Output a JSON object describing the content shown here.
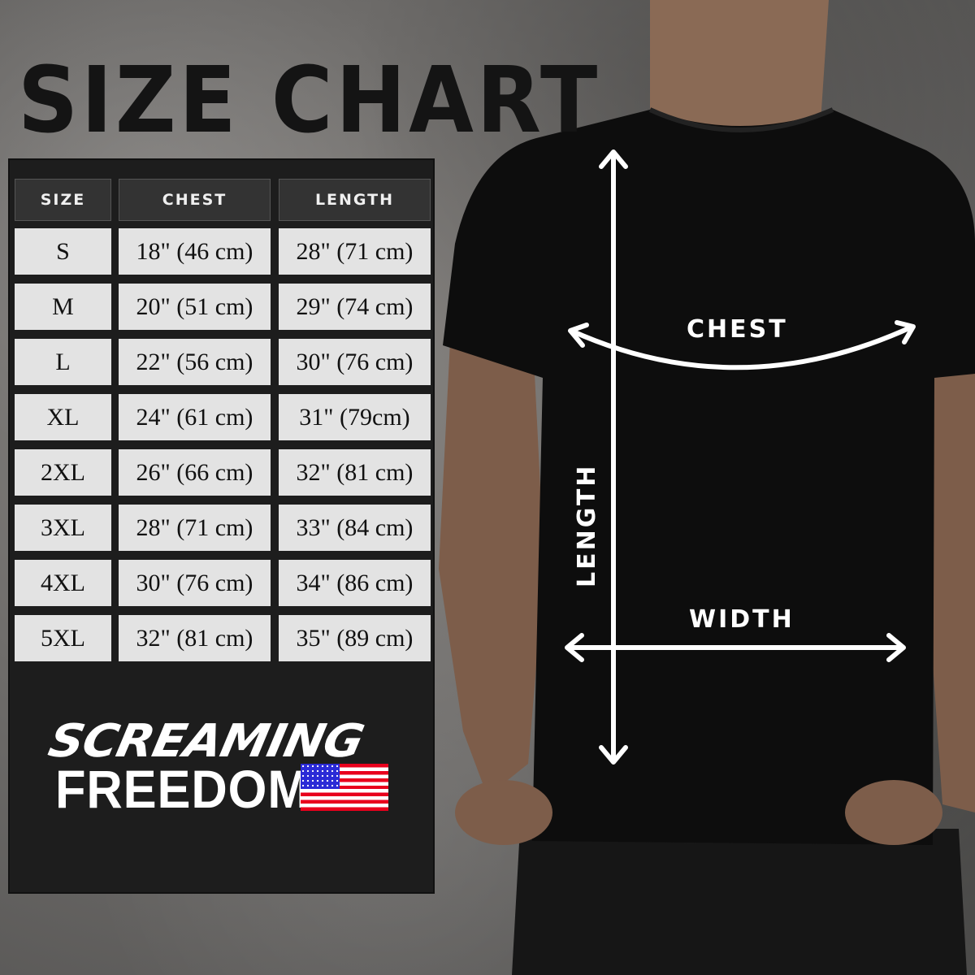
{
  "title": "SIZE CHART",
  "table": {
    "headers": [
      "SIZE",
      "CHEST",
      "LENGTH"
    ],
    "rows": [
      [
        "S",
        "18\" (46 cm)",
        "28\" (71 cm)"
      ],
      [
        "M",
        "20\" (51 cm)",
        "29\" (74 cm)"
      ],
      [
        "L",
        "22\" (56 cm)",
        "30\" (76 cm)"
      ],
      [
        "XL",
        "24\" (61 cm)",
        "31\" (79cm)"
      ],
      [
        "2XL",
        "26\" (66 cm)",
        "32\" (81 cm)"
      ],
      [
        "3XL",
        "28\" (71 cm)",
        "33\" (84 cm)"
      ],
      [
        "4XL",
        "30\" (76 cm)",
        "34\" (86 cm)"
      ],
      [
        "5XL",
        "32\" (81 cm)",
        "35\" (89 cm)"
      ]
    ]
  },
  "logo": {
    "line1": "SCREAMING",
    "line2": "FREEDOM",
    "icon": "us-flag-icon"
  },
  "diagram": {
    "chest_label": "CHEST",
    "width_label": "WIDTH",
    "length_label": "LENGTH"
  },
  "colors": {
    "header_bg": "#333333",
    "cell_bg": "#e3e3e3",
    "panel_bg": "#1d1d1d",
    "arrow": "#ffffff",
    "shirt": "#0d0d0d"
  }
}
